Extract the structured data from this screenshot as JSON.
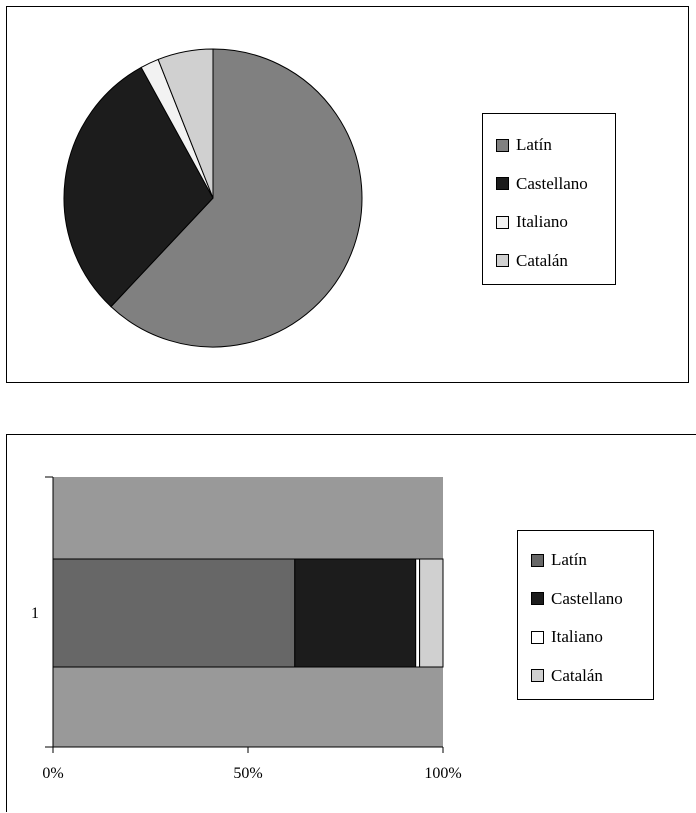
{
  "chart_data": [
    {
      "type": "pie",
      "title": "",
      "slices": [
        {
          "label": "Latín",
          "value": 62,
          "color": "#808080"
        },
        {
          "label": "Castellano",
          "value": 30,
          "color": "#1c1c1c"
        },
        {
          "label": "Italiano",
          "value": 2,
          "color": "#f2f2f2"
        },
        {
          "label": "Catalán",
          "value": 6,
          "color": "#d0d0d0"
        }
      ],
      "legend": {
        "position": "right",
        "items": [
          "Latín",
          "Castellano",
          "Italiano",
          "Catalán"
        ]
      }
    },
    {
      "type": "bar",
      "subtype": "100% stacked horizontal",
      "title": "",
      "categories": [
        "1"
      ],
      "series": [
        {
          "name": "Latín",
          "values": [
            62
          ],
          "color": "#676767"
        },
        {
          "name": "Castellano",
          "values": [
            31
          ],
          "color": "#1c1c1c"
        },
        {
          "name": "Italiano",
          "values": [
            1
          ],
          "color": "#ffffff"
        },
        {
          "name": "Catalán",
          "values": [
            6
          ],
          "color": "#d0d0d0"
        }
      ],
      "plot_background": "#999999",
      "xlim": [
        0,
        100
      ],
      "x_ticks": [
        "0%",
        "50%",
        "100%"
      ],
      "legend": {
        "position": "right",
        "items": [
          "Latín",
          "Castellano",
          "Italiano",
          "Catalán"
        ]
      }
    }
  ]
}
